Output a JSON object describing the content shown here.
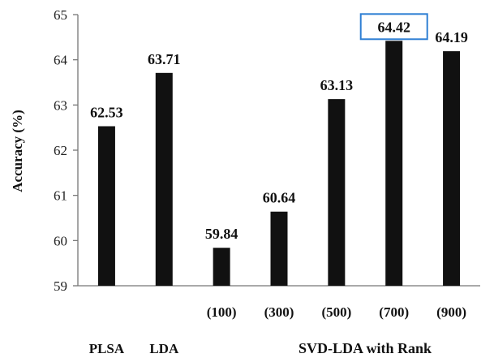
{
  "chart_data": {
    "type": "bar",
    "title": "",
    "xlabel": "",
    "ylabel": "Accuracy (%)",
    "ylim": [
      59,
      65
    ],
    "yticks": [
      "59",
      "60",
      "61",
      "62",
      "63",
      "64",
      "65"
    ],
    "categories": [
      "PLSA",
      "LDA",
      "(100)",
      "(300)",
      "(500)",
      "(700)",
      "(900)"
    ],
    "values": [
      62.53,
      63.71,
      59.84,
      60.64,
      63.13,
      64.42,
      64.19
    ],
    "value_labels": [
      "62.53",
      "63.71",
      "59.84",
      "60.64",
      "63.13",
      "64.42",
      "64.19"
    ],
    "group_label": "SVD-LDA with Rank",
    "highlighted_label": "64.42",
    "bar_color": "#111111",
    "highlight_color": "#2f7fd4",
    "grid": false,
    "legend": "none"
  }
}
